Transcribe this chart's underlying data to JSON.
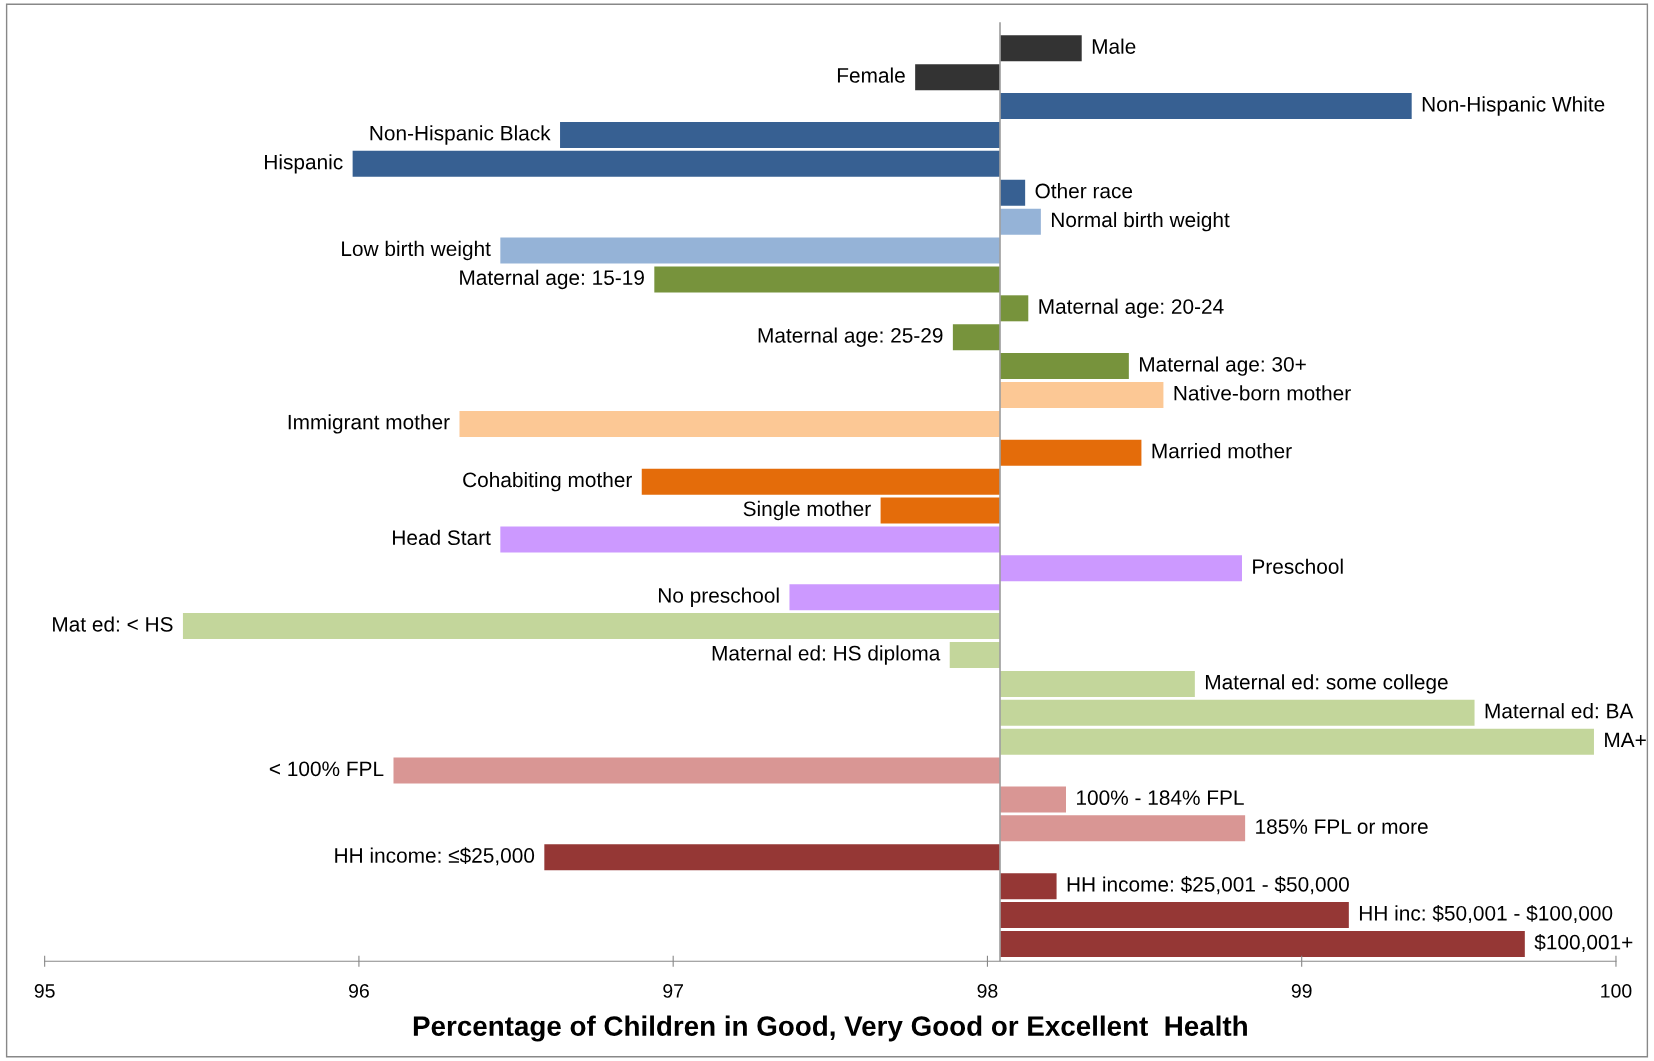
{
  "chart_data": {
    "type": "bar",
    "orientation": "horizontal",
    "xlabel": "Percentage of Children in Good, Very Good or Excellent  Health",
    "categories": [
      "Male",
      "Female",
      "Non-Hispanic White",
      "Non-Hispanic Black",
      "Hispanic",
      "Other race",
      "Normal birth weight",
      "Low birth weight",
      "Maternal age: 15-19",
      "Maternal age: 20-24",
      "Maternal age: 25-29",
      "Maternal age: 30+",
      "Native-born mother",
      "Immigrant mother",
      "Married mother",
      "Cohabiting mother",
      "Single mother",
      "Head Start",
      "Preschool",
      "No preschool",
      "Mat ed: < HS",
      "Maternal ed: HS diploma",
      "Maternal ed: some college",
      "Maternal ed: BA",
      "MA+",
      "< 100% FPL",
      "100% - 184% FPL",
      "185% FPL or more",
      "HH income: ≤$25,000",
      "HH income: $25,001 - $50,000",
      "HH inc: $50,001 - $100,000",
      "$100,001+"
    ],
    "base": [
      98.04,
      98.04,
      98.04,
      98.04,
      98.04,
      98.04,
      98.04,
      98.04,
      98.04,
      98.04,
      98.04,
      98.04,
      98.04,
      98.04,
      98.04,
      98.04,
      98.04,
      98.04,
      98.04,
      98.04,
      98.04,
      98.04,
      98.04,
      98.04,
      98.04,
      98.04,
      98.04,
      98.04,
      98.04,
      98.04,
      98.04,
      98.04
    ],
    "values": [
      0.26,
      -0.27,
      1.31,
      -1.4,
      -2.06,
      0.08,
      0.13,
      -1.59,
      -1.1,
      0.09,
      -0.15,
      0.41,
      0.52,
      -1.72,
      0.45,
      -1.14,
      -0.38,
      -1.59,
      0.77,
      -0.67,
      -2.6,
      -0.16,
      0.62,
      1.51,
      1.89,
      -1.93,
      0.21,
      0.78,
      -1.45,
      0.18,
      1.11,
      1.67
    ],
    "colors": [
      "#333333",
      "#333333",
      "#376092",
      "#376092",
      "#376092",
      "#376092",
      "#95b3d7",
      "#95b3d7",
      "#77933c",
      "#77933c",
      "#77933c",
      "#77933c",
      "#fcc895",
      "#fcc895",
      "#e46c0a",
      "#e46c0a",
      "#e46c0a",
      "#cc99ff",
      "#cc99ff",
      "#cc99ff",
      "#c3d69b",
      "#c3d69b",
      "#c3d69b",
      "#c3d69b",
      "#c3d69b",
      "#d99694",
      "#d99694",
      "#d99694",
      "#953735",
      "#953735",
      "#953735",
      "#953735"
    ],
    "xlim": [
      95,
      100
    ],
    "xticks": [
      95,
      96,
      97,
      98,
      99,
      100
    ],
    "grid": false,
    "legend": false
  }
}
